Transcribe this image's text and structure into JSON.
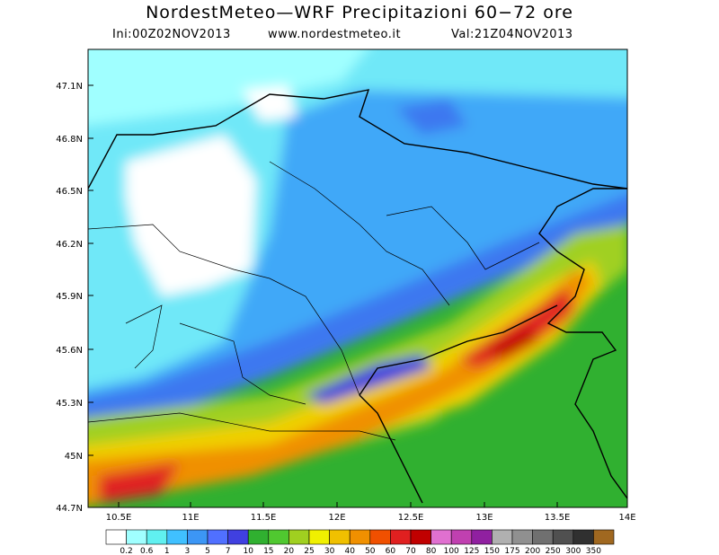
{
  "header": {
    "title": "NordestMeteo—WRF Precipitazioni 60−72 ore",
    "init": "Ini:00Z02NOV2013",
    "site": "www.nordestmeteo.it",
    "valid": "Val:21Z04NOV2013"
  },
  "latitude_labels": [
    "47.1N",
    "46.8N",
    "46.5N",
    "46.2N",
    "45.9N",
    "45.6N",
    "45.3N",
    "45N",
    "44.7N"
  ],
  "longitude_labels": [
    "10.5E",
    "11E",
    "11.5E",
    "12E",
    "12.5E",
    "13E",
    "13.5E",
    "14E"
  ],
  "colorbar": {
    "labels": [
      "0.2",
      "0.6",
      "1",
      "3",
      "5",
      "7",
      "10",
      "15",
      "20",
      "25",
      "30",
      "40",
      "50",
      "60",
      "70",
      "80",
      "100",
      "125",
      "150",
      "175",
      "200",
      "250",
      "300",
      "350"
    ]
  }
}
